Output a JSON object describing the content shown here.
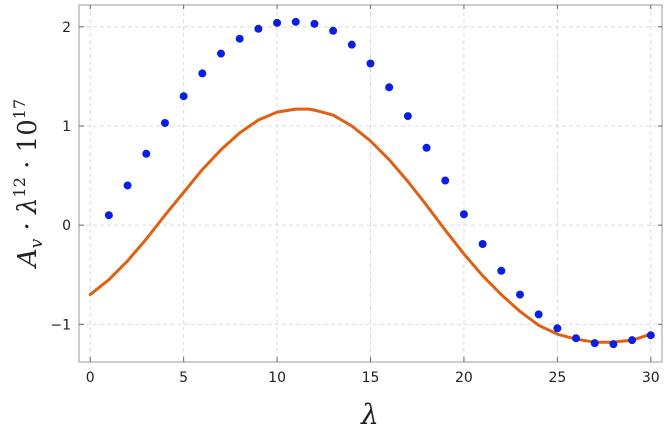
{
  "chart_data": {
    "type": "line",
    "xlabel": "λ",
    "ylabel": "A_v · λ^12 · 10^17",
    "xlim": [
      -0.6,
      30.6
    ],
    "ylim": [
      -1.38,
      2.22
    ],
    "xticks": [
      0,
      5,
      10,
      15,
      20,
      25,
      30
    ],
    "yticks": [
      -1,
      0,
      1,
      2
    ],
    "grid": true,
    "series": [
      {
        "kind": "scatter",
        "color": "#0a1fe6",
        "x": [
          1,
          2,
          3,
          4,
          5,
          6,
          7,
          8,
          9,
          10,
          11,
          12,
          13,
          14,
          15,
          16,
          17,
          18,
          19,
          20,
          21,
          22,
          23,
          24,
          25,
          26,
          27,
          28,
          29,
          30
        ],
        "y": [
          0.1,
          0.4,
          0.72,
          1.03,
          1.3,
          1.53,
          1.73,
          1.88,
          1.98,
          2.04,
          2.05,
          2.03,
          1.96,
          1.82,
          1.63,
          1.39,
          1.1,
          0.78,
          0.45,
          0.11,
          -0.19,
          -0.46,
          -0.7,
          -0.9,
          -1.04,
          -1.14,
          -1.19,
          -1.2,
          -1.16,
          -1.11
        ]
      },
      {
        "kind": "line",
        "color": "#e06012",
        "x": [
          0,
          1,
          2,
          3,
          4,
          5,
          6,
          7,
          8,
          9,
          10,
          11,
          11.7,
          12,
          13,
          14,
          15,
          16,
          17,
          18,
          19,
          20,
          21,
          22,
          23,
          24,
          25,
          26,
          27,
          28,
          28.4,
          29,
          30
        ],
        "y": [
          -0.7,
          -0.55,
          -0.36,
          -0.14,
          0.1,
          0.33,
          0.56,
          0.76,
          0.93,
          1.06,
          1.14,
          1.17,
          1.17,
          1.16,
          1.11,
          1.0,
          0.85,
          0.66,
          0.44,
          0.2,
          -0.05,
          -0.29,
          -0.51,
          -0.7,
          -0.87,
          -1.01,
          -1.1,
          -1.15,
          -1.18,
          -1.18,
          -1.17,
          -1.16,
          -1.1
        ]
      }
    ]
  }
}
